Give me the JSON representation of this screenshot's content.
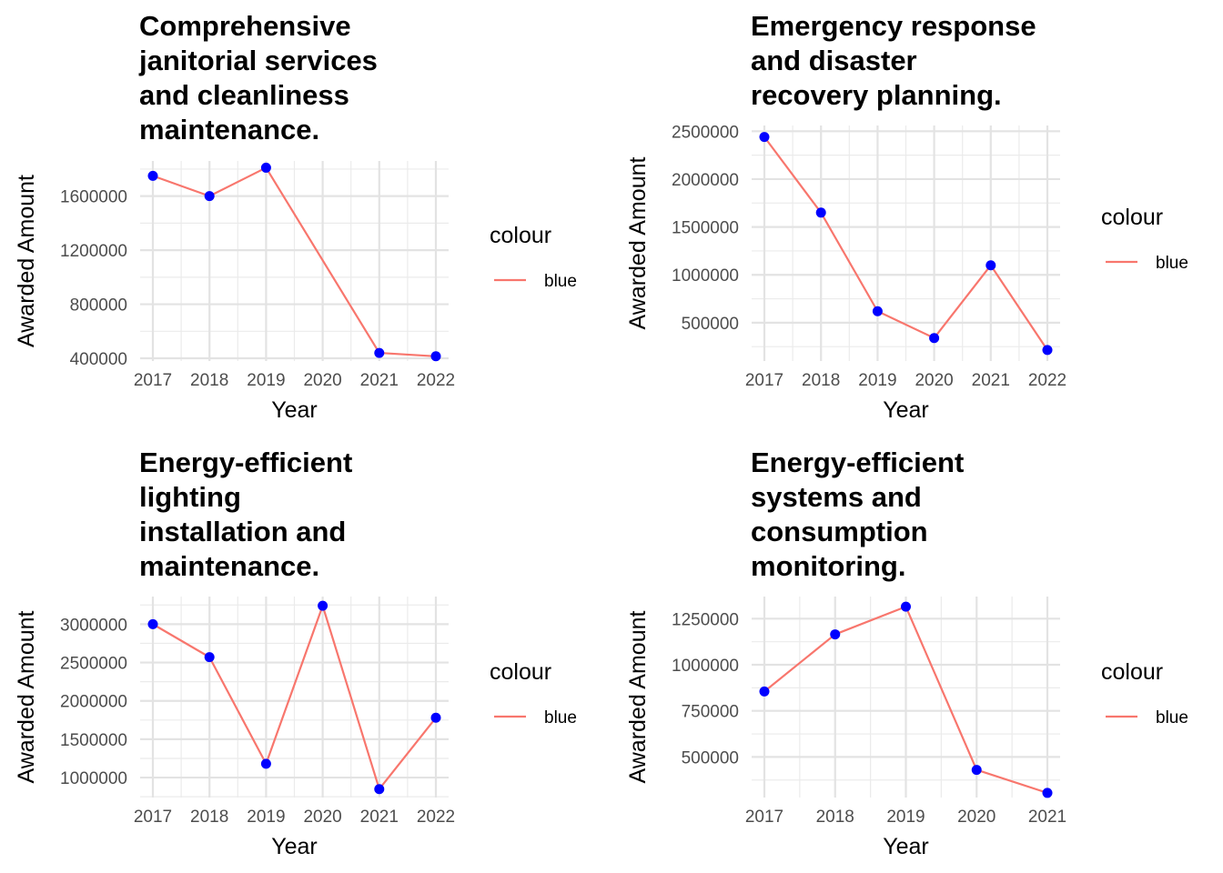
{
  "chart_data": [
    {
      "type": "line",
      "title_lines": [
        "Comprehensive",
        "janitorial services",
        "and cleanliness",
        "maintenance."
      ],
      "xlabel": "Year",
      "ylabel": "Awarded Amount",
      "x": [
        2017,
        2018,
        2019,
        2021,
        2022
      ],
      "x_ticks": [
        2017,
        2018,
        2019,
        2020,
        2021,
        2022
      ],
      "y_ticks": [
        400000,
        800000,
        1200000,
        1600000
      ],
      "y_tick_labels": [
        "400000",
        "800000",
        "1200000",
        "1600000"
      ],
      "xlim": [
        2017,
        2022
      ],
      "ylim": [
        380000,
        1860000
      ],
      "series": [
        {
          "values": [
            1750000,
            1600000,
            1810000,
            440000,
            415000
          ]
        }
      ],
      "legend": {
        "title": "colour",
        "label": "blue",
        "placement": "right"
      },
      "line_color": "#F8766D",
      "point_color": "#0000FF",
      "grid": true
    },
    {
      "type": "line",
      "title_lines": [
        "Emergency response",
        "and disaster",
        "recovery planning."
      ],
      "xlabel": "Year",
      "ylabel": "Awarded Amount",
      "x": [
        2017,
        2018,
        2019,
        2020,
        2021,
        2022
      ],
      "x_ticks": [
        2017,
        2018,
        2019,
        2020,
        2021,
        2022
      ],
      "y_ticks": [
        500000,
        1000000,
        1500000,
        2000000,
        2500000
      ],
      "y_tick_labels": [
        "500000",
        "1000000",
        "1500000",
        "2000000",
        "2500000"
      ],
      "xlim": [
        2017,
        2022
      ],
      "ylim": [
        100000,
        2560000
      ],
      "series": [
        {
          "values": [
            2440000,
            1650000,
            620000,
            340000,
            1100000,
            215000
          ]
        }
      ],
      "legend": {
        "title": "colour",
        "label": "blue",
        "placement": "right"
      },
      "line_color": "#F8766D",
      "point_color": "#0000FF",
      "grid": true
    },
    {
      "type": "line",
      "title_lines": [
        "Energy-efficient",
        "lighting",
        "installation and",
        "maintenance."
      ],
      "xlabel": "Year",
      "ylabel": "Awarded Amount",
      "x": [
        2017,
        2018,
        2019,
        2020,
        2021,
        2022
      ],
      "x_ticks": [
        2017,
        2018,
        2019,
        2020,
        2021,
        2022
      ],
      "y_ticks": [
        1000000,
        1500000,
        2000000,
        2500000,
        3000000
      ],
      "y_tick_labels": [
        "1000000",
        "1500000",
        "2000000",
        "2500000",
        "3000000"
      ],
      "xlim": [
        2017,
        2022
      ],
      "ylim": [
        740000,
        3360000
      ],
      "series": [
        {
          "values": [
            3000000,
            2570000,
            1180000,
            3240000,
            850000,
            1780000
          ]
        }
      ],
      "legend": {
        "title": "colour",
        "label": "blue",
        "placement": "right"
      },
      "line_color": "#F8766D",
      "point_color": "#0000FF",
      "grid": true
    },
    {
      "type": "line",
      "title_lines": [
        "Energy-efficient",
        "systems and",
        "consumption",
        "monitoring."
      ],
      "xlabel": "Year",
      "ylabel": "Awarded Amount",
      "x": [
        2017,
        2018,
        2019,
        2020,
        2021
      ],
      "x_ticks": [
        2017,
        2018,
        2019,
        2020,
        2021
      ],
      "y_ticks": [
        500000,
        750000,
        1000000,
        1250000
      ],
      "y_tick_labels": [
        "500000",
        "750000",
        "1000000",
        "1250000"
      ],
      "xlim": [
        2017,
        2021
      ],
      "ylim": [
        280000,
        1370000
      ],
      "series": [
        {
          "values": [
            855000,
            1165000,
            1315000,
            430000,
            305000
          ]
        }
      ],
      "legend": {
        "title": "colour",
        "label": "blue",
        "placement": "right"
      },
      "line_color": "#F8766D",
      "point_color": "#0000FF",
      "grid": true
    }
  ]
}
